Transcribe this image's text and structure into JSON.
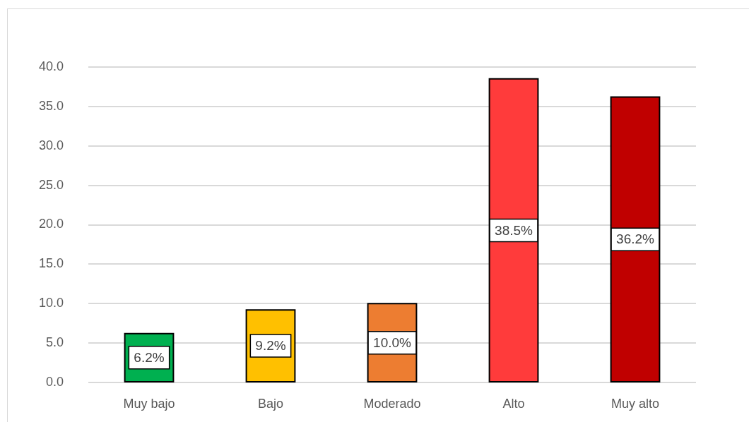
{
  "chart_data": {
    "type": "bar",
    "categories": [
      "Muy bajo",
      "Bajo",
      "Moderado",
      "Alto",
      "Muy alto"
    ],
    "values": [
      6.2,
      9.2,
      10.0,
      38.5,
      36.2
    ],
    "value_labels": [
      "6.2%",
      "9.2%",
      "10.0%",
      "38.5%",
      "36.2%"
    ],
    "colors": [
      "#00b050",
      "#ffc000",
      "#ed7d31",
      "#ff3b3b",
      "#c00000"
    ],
    "ylim": [
      0,
      40
    ],
    "yticks": [
      {
        "value": 0,
        "label": "0.0"
      },
      {
        "value": 5,
        "label": "5.0"
      },
      {
        "value": 10,
        "label": "10.0"
      },
      {
        "value": 15,
        "label": "15.0"
      },
      {
        "value": 20,
        "label": "20.0"
      },
      {
        "value": 25,
        "label": "25.0"
      },
      {
        "value": 30,
        "label": "30.0"
      },
      {
        "value": 35,
        "label": "35.0"
      },
      {
        "value": 40,
        "label": "40.0"
      }
    ],
    "grid": "y"
  }
}
